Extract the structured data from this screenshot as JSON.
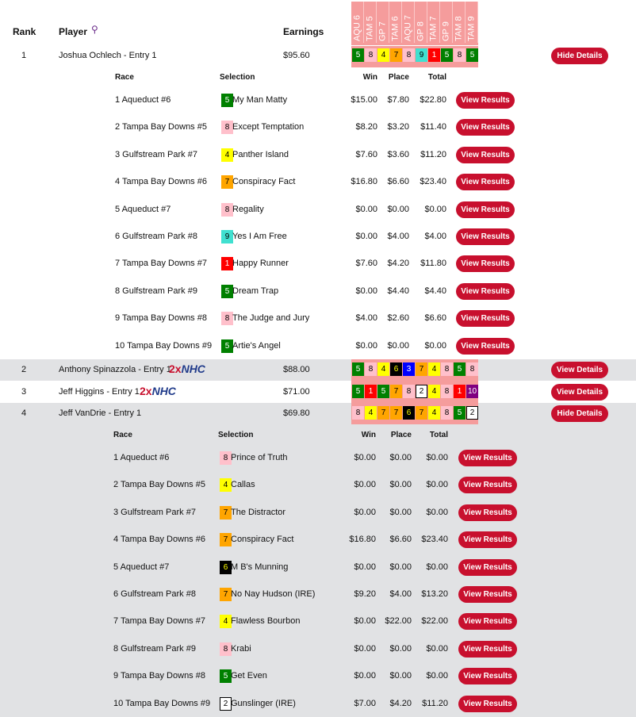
{
  "header": {
    "rank": "Rank",
    "player": "Player",
    "earnings": "Earnings",
    "races": [
      "AQU 6",
      "TAM 5",
      "GP 7",
      "TAM 6",
      "AQU 7",
      "GP 8",
      "TAM 7",
      "GP 9",
      "TAM 8",
      "TAM 9"
    ]
  },
  "saddle_colors": {
    "1": [
      "#ff0000",
      "#ffffff"
    ],
    "2": [
      "#ffffff",
      "#000000"
    ],
    "3": [
      "#0000ff",
      "#ffffff"
    ],
    "4": [
      "#ffff00",
      "#000000"
    ],
    "5": [
      "#008000",
      "#ffffff"
    ],
    "6": [
      "#000000",
      "#ffff00"
    ],
    "7": [
      "#ffa500",
      "#000000"
    ],
    "8": [
      "#ffc0cb",
      "#000000"
    ],
    "9": [
      "#40e0d0",
      "#000000"
    ],
    "10": [
      "#800080",
      "#ffffff"
    ]
  },
  "detail_headers": {
    "race": "Race",
    "selection": "Selection",
    "win": "Win",
    "place": "Place",
    "total": "Total"
  },
  "view_results_label": "View Results",
  "badge": {
    "two": "2x",
    "nhc": "NHC"
  },
  "rows": [
    {
      "rank": "1",
      "player": "Joshua Ochlech - Entry 1",
      "badge": false,
      "earnings": "$95.60",
      "picks": [
        "5",
        "8",
        "4",
        "7",
        "8",
        "9",
        "1",
        "5",
        "8",
        "5"
      ],
      "button": "Hide Details",
      "details": [
        {
          "race": "1 Aqueduct #6",
          "num": "5",
          "horse": "My Man Matty",
          "win": "$15.00",
          "place": "$7.80",
          "total": "$22.80"
        },
        {
          "race": "2 Tampa Bay Downs #5",
          "num": "8",
          "horse": "Except Temptation",
          "win": "$8.20",
          "place": "$3.20",
          "total": "$11.40"
        },
        {
          "race": "3 Gulfstream Park #7",
          "num": "4",
          "horse": "Panther Island",
          "win": "$7.60",
          "place": "$3.60",
          "total": "$11.20"
        },
        {
          "race": "4 Tampa Bay Downs #6",
          "num": "7",
          "horse": "Conspiracy Fact",
          "win": "$16.80",
          "place": "$6.60",
          "total": "$23.40"
        },
        {
          "race": "5 Aqueduct #7",
          "num": "8",
          "horse": "Regality",
          "win": "$0.00",
          "place": "$0.00",
          "total": "$0.00"
        },
        {
          "race": "6 Gulfstream Park #8",
          "num": "9",
          "horse": "Yes I Am Free",
          "win": "$0.00",
          "place": "$4.00",
          "total": "$4.00"
        },
        {
          "race": "7 Tampa Bay Downs #7",
          "num": "1",
          "horse": "Happy Runner",
          "win": "$7.60",
          "place": "$4.20",
          "total": "$11.80"
        },
        {
          "race": "8 Gulfstream Park #9",
          "num": "5",
          "horse": "Dream Trap",
          "win": "$0.00",
          "place": "$4.40",
          "total": "$4.40"
        },
        {
          "race": "9 Tampa Bay Downs #8",
          "num": "8",
          "horse": "The Judge and Jury",
          "win": "$4.00",
          "place": "$2.60",
          "total": "$6.60"
        },
        {
          "race": "10 Tampa Bay Downs #9",
          "num": "5",
          "horse": "Artie's Angel",
          "win": "$0.00",
          "place": "$0.00",
          "total": "$0.00"
        }
      ]
    },
    {
      "rank": "2",
      "player": "Anthony Spinazzola - Entry 1",
      "badge": true,
      "earnings": "$88.00",
      "picks": [
        "5",
        "8",
        "4",
        "6",
        "3",
        "7",
        "4",
        "8",
        "5",
        "8"
      ],
      "button": "View Details",
      "details": []
    },
    {
      "rank": "3",
      "player": "Jeff Higgins - Entry 1",
      "badge": true,
      "earnings": "$71.00",
      "picks": [
        "5",
        "1",
        "5",
        "7",
        "8",
        "2",
        "4",
        "8",
        "1",
        "10"
      ],
      "button": "View Details",
      "details": []
    },
    {
      "rank": "4",
      "player": "Jeff VanDrie - Entry 1",
      "badge": false,
      "earnings": "$69.80",
      "picks": [
        "8",
        "4",
        "7",
        "7",
        "6",
        "7",
        "4",
        "8",
        "5",
        "2"
      ],
      "button": "Hide Details",
      "details": [
        {
          "race": "1 Aqueduct #6",
          "num": "8",
          "horse": "Prince of Truth",
          "win": "$0.00",
          "place": "$0.00",
          "total": "$0.00"
        },
        {
          "race": "2 Tampa Bay Downs #5",
          "num": "4",
          "horse": "Callas",
          "win": "$0.00",
          "place": "$0.00",
          "total": "$0.00"
        },
        {
          "race": "3 Gulfstream Park #7",
          "num": "7",
          "horse": "The Distractor",
          "win": "$0.00",
          "place": "$0.00",
          "total": "$0.00"
        },
        {
          "race": "4 Tampa Bay Downs #6",
          "num": "7",
          "horse": "Conspiracy Fact",
          "win": "$16.80",
          "place": "$6.60",
          "total": "$23.40"
        },
        {
          "race": "5 Aqueduct #7",
          "num": "6",
          "horse": "M B's Munning",
          "win": "$0.00",
          "place": "$0.00",
          "total": "$0.00"
        },
        {
          "race": "6 Gulfstream Park #8",
          "num": "7",
          "horse": "No Nay Hudson (IRE)",
          "win": "$9.20",
          "place": "$4.00",
          "total": "$13.20"
        },
        {
          "race": "7 Tampa Bay Downs #7",
          "num": "4",
          "horse": "Flawless Bourbon",
          "win": "$0.00",
          "place": "$22.00",
          "total": "$22.00"
        },
        {
          "race": "8 Gulfstream Park #9",
          "num": "8",
          "horse": "Krabi",
          "win": "$0.00",
          "place": "$0.00",
          "total": "$0.00"
        },
        {
          "race": "9 Tampa Bay Downs #8",
          "num": "5",
          "horse": "Get Even",
          "win": "$0.00",
          "place": "$0.00",
          "total": "$0.00"
        },
        {
          "race": "10 Tampa Bay Downs #9",
          "num": "2",
          "horse": "Gunslinger (IRE)",
          "win": "$7.00",
          "place": "$4.20",
          "total": "$11.20"
        }
      ]
    }
  ]
}
